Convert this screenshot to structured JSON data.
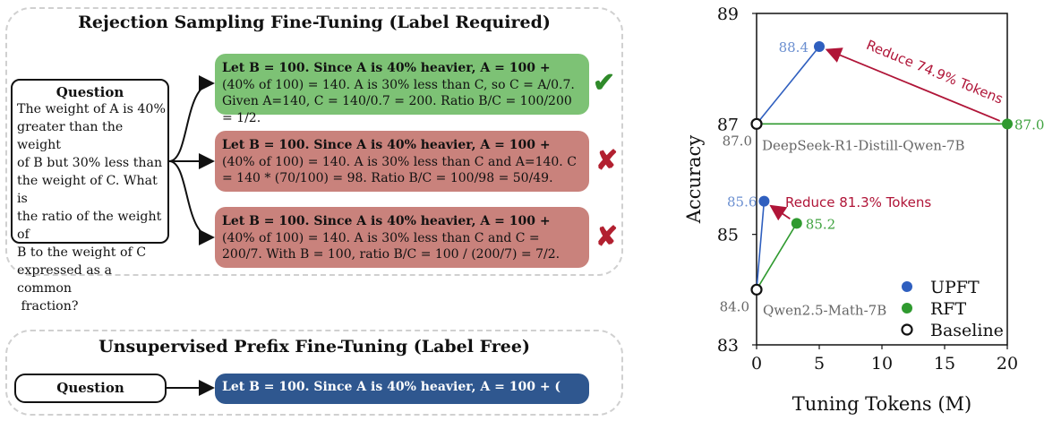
{
  "top_panel": {
    "title": "Rejection Sampling Fine-Tuning (Label Required)",
    "question_title": "Question",
    "question_lines": [
      "The weight of A is 40%",
      "greater than the weight",
      "of B but 30% less than",
      "the weight of C. What is",
      "the ratio of the weight of",
      "B to the weight of C",
      "expressed as a common",
      " fraction?"
    ],
    "responses": [
      {
        "bold": "Let B = 100.  Since A is 40% heavier, A = 100 + ",
        "rest": "(40% of 100) = 140. A is 30% less than C, so C = A/0.7.  Given A=140, C = 140/0.7 = 200. Ratio B/C = 100/200 = 1/2.",
        "verdict": "correct",
        "mark": "✔",
        "color": "#7dc275"
      },
      {
        "bold": "Let B = 100.  Since A is 40% heavier, A = 100 + ",
        "rest": "(40% of 100) = 140. A is 30% less than C and A=140.  C = 140 * (70/100) = 98. Ratio B/C = 100/98 = 50/49.",
        "verdict": "incorrect",
        "mark": "✘",
        "color": "#c9827c"
      },
      {
        "bold": "Let B = 100.  Since A is 40% heavier, A = 100 + ",
        "rest": "(40% of 100) = 140. A is 30% less than C and C = 200/7. With B = 100, ratio B/C = 100 / (200/7) = 7/2.",
        "verdict": "incorrect",
        "mark": "✘",
        "color": "#c9827c"
      }
    ]
  },
  "bottom_panel": {
    "title": "Unsupervised Prefix Fine-Tuning (Label Free)",
    "question_title": "Question",
    "prefix": "Let B = 100.  Since A is 40% heavier, A = 100 + (",
    "prefix_color": "#2f578f"
  },
  "chart_data": {
    "type": "scatter",
    "xlabel": "Tuning Tokens (M)",
    "ylabel": "Accuracy",
    "xlim": [
      0,
      20
    ],
    "ylim": [
      83,
      89
    ],
    "xticks": [
      0,
      5,
      10,
      15,
      20
    ],
    "yticks": [
      83,
      85,
      87,
      89
    ],
    "grid": false,
    "legend_position": "bottom-right",
    "series": [
      {
        "name": "UPFT",
        "color": "#2f5fbf",
        "marker": "filled",
        "points": [
          {
            "x": 5,
            "y": 88.4,
            "label": "88.4"
          },
          {
            "x": 0.6,
            "y": 85.6,
            "label": "85.6"
          }
        ]
      },
      {
        "name": "RFT",
        "color": "#2f9a2f",
        "marker": "filled",
        "points": [
          {
            "x": 20,
            "y": 87.0,
            "label": "87.0"
          },
          {
            "x": 3.2,
            "y": 85.2,
            "label": "85.2"
          }
        ]
      },
      {
        "name": "Baseline",
        "color": "#111111",
        "marker": "hollow",
        "points": [
          {
            "x": 0,
            "y": 87.0,
            "label": "87.0",
            "model": "DeepSeek-R1-Distill-Qwen-7B"
          },
          {
            "x": 0,
            "y": 84.0,
            "label": "84.0",
            "model": "Qwen2.5-Math-7B"
          }
        ]
      }
    ],
    "annotations": [
      {
        "text": "Reduce 74.9% Tokens",
        "color": "#b01538",
        "from": [
          20,
          87.0
        ],
        "to": [
          5,
          88.4
        ]
      },
      {
        "text": "Reduce 81.3% Tokens",
        "color": "#b01538",
        "from": [
          3.2,
          85.2
        ],
        "to": [
          0.6,
          85.6
        ]
      }
    ]
  }
}
